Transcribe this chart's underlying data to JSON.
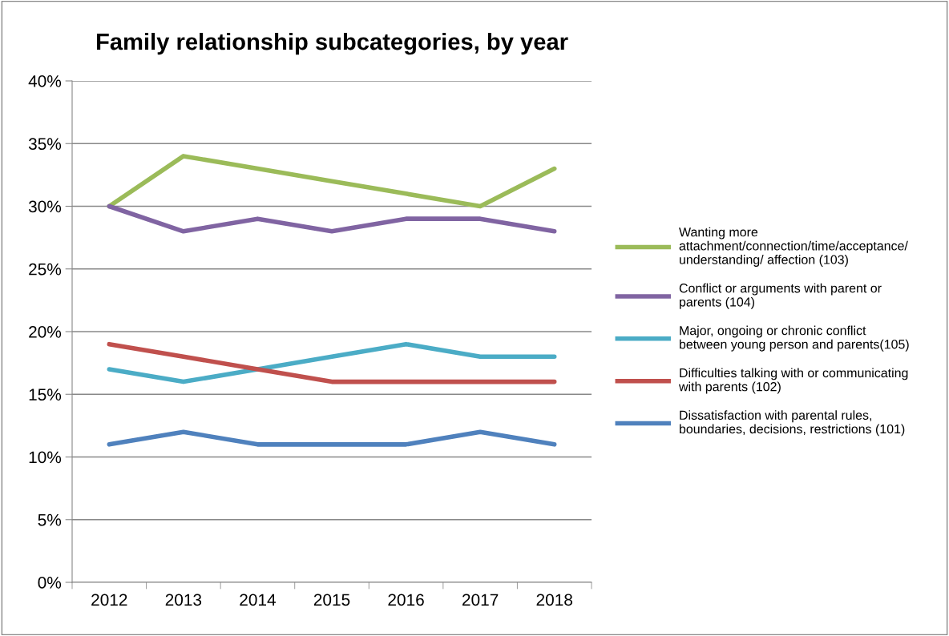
{
  "chart_data": {
    "type": "line",
    "title": "Family relationship subcategories, by year",
    "categories": [
      "2012",
      "2013",
      "2014",
      "2015",
      "2016",
      "2017",
      "2018"
    ],
    "series": [
      {
        "name": "Wanting more\nattachment/connection/time/acceptance/\nunderstanding/ affection (103)",
        "color": "#9bbb59",
        "values": [
          30,
          34,
          33,
          32,
          31,
          30,
          33
        ]
      },
      {
        "name": "Conflict or arguments with parent or\nparents (104)",
        "color": "#8064a2",
        "values": [
          30,
          28,
          29,
          28,
          29,
          29,
          28
        ]
      },
      {
        "name": "Major, ongoing or chronic conflict\nbetween young person and parents(105)",
        "color": "#4bacc6",
        "values": [
          17,
          16,
          17,
          18,
          19,
          18,
          18
        ]
      },
      {
        "name": "Difficulties talking with or communicating\nwith parents (102)",
        "color": "#c0504d",
        "values": [
          19,
          18,
          17,
          16,
          16,
          16,
          16
        ]
      },
      {
        "name": "Dissatisfaction with parental rules,\nboundaries, decisions, restrictions (101)",
        "color": "#4f81bd",
        "values": [
          11,
          12,
          11,
          11,
          11,
          12,
          11
        ]
      }
    ],
    "ylim": [
      0,
      40
    ],
    "yticks": [
      {
        "value": 0,
        "label": "0%"
      },
      {
        "value": 5,
        "label": "5%"
      },
      {
        "value": 10,
        "label": "10%"
      },
      {
        "value": 15,
        "label": "15%"
      },
      {
        "value": 20,
        "label": "20%"
      },
      {
        "value": 25,
        "label": "25%"
      },
      {
        "value": 30,
        "label": "30%"
      },
      {
        "value": 35,
        "label": "35%"
      },
      {
        "value": 40,
        "label": "40%"
      }
    ],
    "grid": "y",
    "legend": "right",
    "marker": "none",
    "line_style": "solid"
  }
}
